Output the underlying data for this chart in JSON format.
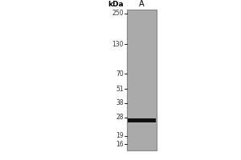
{
  "title": "A",
  "kda_label": "kDa",
  "ladder_marks": [
    250,
    130,
    70,
    51,
    38,
    28,
    19,
    16
  ],
  "band_kda": 26.5,
  "band_color": "#111111",
  "lane_color": "#aaaaaa",
  "lane_edge_color": "#888888",
  "background_color": "#ffffff",
  "fig_width": 3.0,
  "fig_height": 2.0,
  "dpi": 100,
  "ymin": 14,
  "ymax": 270
}
